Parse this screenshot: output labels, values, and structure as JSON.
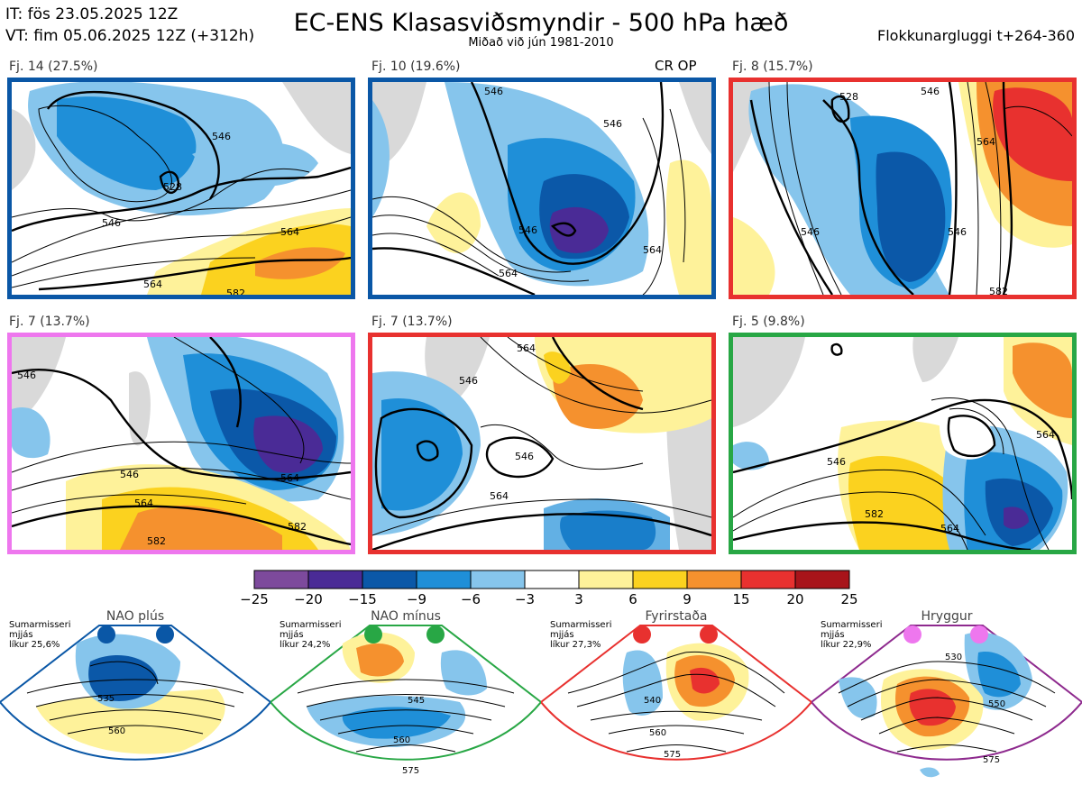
{
  "header": {
    "it_line": "IT: fös 23.05.2025 12Z",
    "vt_line": "VT: fim 05.06.2025 12Z  (+312h)",
    "title": "EC-ENS Klasasviðsmyndir - 500 hPa hæð",
    "subtitle": "Miðað við jún 1981-2010",
    "window": "Flokkunargluggi t+264-360"
  },
  "panels": [
    {
      "label": "Fj. 14 (27.5%)",
      "border_color": "#0a57a6",
      "badge": "",
      "contour_labels": [
        "546",
        "528",
        "546",
        "564",
        "564",
        "582"
      ]
    },
    {
      "label": "Fj. 10 (19.6%)",
      "border_color": "#0a57a6",
      "badge": "CR OP",
      "contour_labels": [
        "546",
        "546",
        "546",
        "564",
        "564"
      ]
    },
    {
      "label": "Fj. 8 (15.7%)",
      "border_color": "#e8312f",
      "badge": "",
      "contour_labels": [
        "528",
        "546",
        "546",
        "546",
        "564",
        "582"
      ]
    },
    {
      "label": "Fj. 7 (13.7%)",
      "border_color": "#ee77ee",
      "badge": "",
      "contour_labels": [
        "546",
        "546",
        "564",
        "564",
        "582",
        "582"
      ]
    },
    {
      "label": "Fj. 7 (13.7%)",
      "border_color": "#e8312f",
      "badge": "",
      "contour_labels": [
        "546",
        "546",
        "564",
        "564"
      ]
    },
    {
      "label": "Fj. 5 (9.8%)",
      "border_color": "#28a745",
      "badge": "",
      "contour_labels": [
        "546",
        "564",
        "564",
        "582"
      ]
    }
  ],
  "colorbar": {
    "ticks": [
      "−25",
      "−20",
      "−15",
      "−9",
      "−6",
      "−3",
      "3",
      "6",
      "9",
      "15",
      "20",
      "25"
    ],
    "colors": [
      "#7d4a9c",
      "#4a2b96",
      "#0b58a8",
      "#1f8fd8",
      "#86c5ec",
      "#ffffff",
      "#fef29a",
      "#fbd21f",
      "#f5912e",
      "#e8312f",
      "#a8141a"
    ]
  },
  "regimes": [
    {
      "name": "NAO plús",
      "desc": [
        "Sumarmisseri",
        "mjjás",
        "líkur 25,6%"
      ],
      "color": "#0a57a6",
      "labels": [
        "535",
        "560"
      ]
    },
    {
      "name": "NAO mínus",
      "desc": [
        "Sumarmisseri",
        "mjjás",
        "líkur 24,2%"
      ],
      "color": "#28a745",
      "labels": [
        "545",
        "560",
        "575"
      ]
    },
    {
      "name": "Fyrirstaða",
      "desc": [
        "Sumarmisseri",
        "mjjás",
        "líkur 27,3%"
      ],
      "color": "#e8312f",
      "labels": [
        "540",
        "560",
        "575"
      ]
    },
    {
      "name": "Hryggur",
      "desc": [
        "Sumarmisseri",
        "mjjás",
        "líkur 22,9%"
      ],
      "color": "#ee77ee",
      "labels": [
        "530",
        "550",
        "575"
      ]
    }
  ]
}
